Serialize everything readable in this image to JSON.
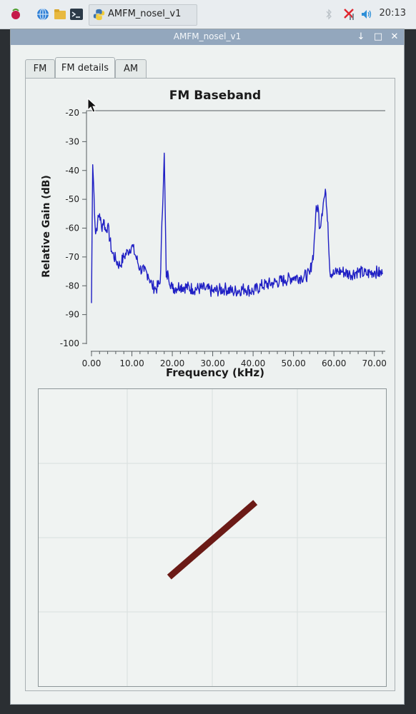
{
  "taskbar": {
    "icons": [
      "raspberry-menu-icon",
      "web-browser-icon",
      "file-manager-icon",
      "terminal-icon",
      "python-icon"
    ],
    "task_label": "AMFM_nosel_v1",
    "tray_icons": [
      "bluetooth-icon",
      "network-disconnected-icon",
      "volume-icon"
    ],
    "clock": "20:13"
  },
  "window": {
    "title": "AMFM_nosel_v1",
    "controls": [
      "minimize",
      "maximize",
      "close"
    ]
  },
  "tabs": [
    {
      "label": "FM",
      "active": false
    },
    {
      "label": "FM details",
      "active": true
    },
    {
      "label": "AM",
      "active": false
    }
  ],
  "chart_data": [
    {
      "type": "line",
      "title": "FM Baseband",
      "xlabel": "Frequency (kHz)",
      "ylabel": "Relative Gain (dB)",
      "xlim": [
        0,
        72
      ],
      "ylim": [
        -100,
        -20
      ],
      "x_ticks": [
        "0.00",
        "10.00",
        "20.00",
        "30.00",
        "40.00",
        "50.00",
        "60.00",
        "70.00"
      ],
      "y_ticks": [
        "-20",
        "-30",
        "-40",
        "-50",
        "-60",
        "-70",
        "-80",
        "-90",
        "-100"
      ],
      "grid": false,
      "series": [
        {
          "color": "#1f1fc4",
          "x": [
            0,
            0.3,
            0.5,
            1,
            1.5,
            2,
            2.5,
            3,
            3.5,
            4,
            5,
            6,
            7,
            8,
            9,
            10,
            11,
            12,
            13,
            14,
            15,
            16,
            17,
            18,
            18.5,
            19,
            20,
            22,
            25,
            28,
            30,
            33,
            35,
            38,
            40,
            42,
            45,
            48,
            50,
            52,
            54,
            54.5,
            55,
            55.5,
            56,
            56.5,
            57,
            57.5,
            58,
            58.5,
            59,
            60,
            61,
            62,
            64,
            66,
            68,
            70,
            72
          ],
          "y": [
            -86,
            -38,
            -44,
            -62,
            -58,
            -55,
            -60,
            -57,
            -61,
            -59,
            -68,
            -71,
            -73,
            -70,
            -68,
            -66,
            -70,
            -74,
            -75,
            -76,
            -80,
            -81,
            -79,
            -34,
            -77,
            -76,
            -81,
            -80,
            -81,
            -81,
            -82,
            -81,
            -82,
            -81,
            -82,
            -80,
            -79,
            -78,
            -77,
            -77,
            -76,
            -72,
            -68,
            -55,
            -52,
            -60,
            -55,
            -50,
            -48,
            -58,
            -75,
            -76,
            -75,
            -75,
            -76,
            -75,
            -76,
            -75,
            -76
          ]
        }
      ]
    },
    {
      "type": "line",
      "title": "",
      "xlabel": "",
      "ylabel": "",
      "grid": true,
      "series": [
        {
          "color": "#6b1a16",
          "x": [
            -0.35,
            0.35
          ],
          "y": [
            -0.38,
            0.34
          ]
        }
      ]
    }
  ]
}
